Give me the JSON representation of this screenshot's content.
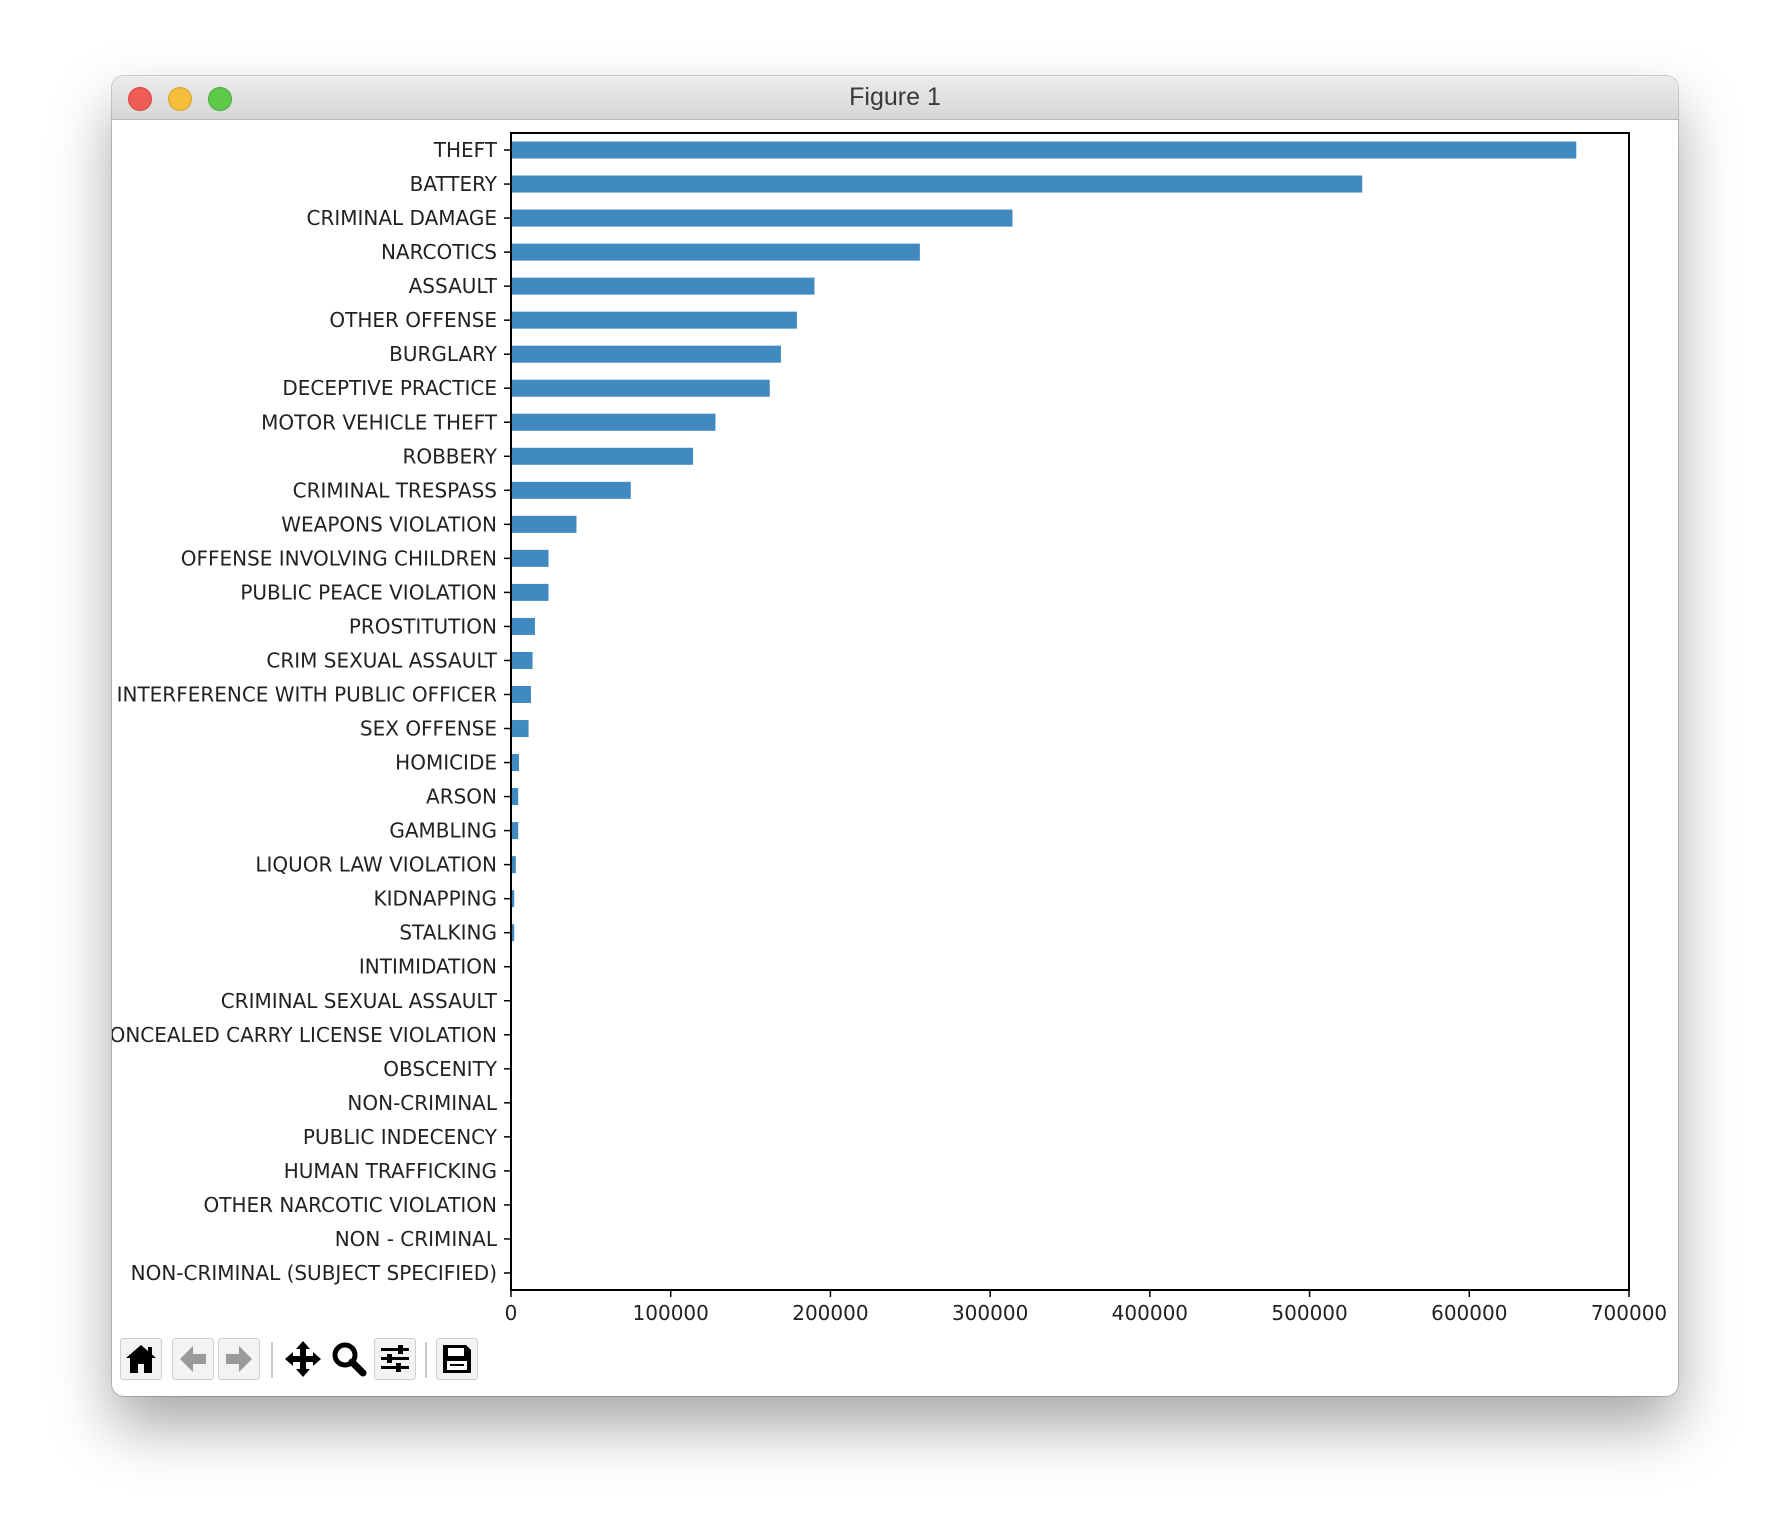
{
  "window": {
    "title": "Figure 1"
  },
  "toolbar": {
    "buttons": [
      "home-icon",
      "back-arrow-icon",
      "forward-arrow-icon",
      "pan-icon",
      "zoom-icon",
      "configure-subplots-icon",
      "save-icon"
    ]
  },
  "colors": {
    "bar": "#4189c1",
    "axes": "#000000"
  },
  "chart_data": {
    "type": "bar",
    "orientation": "horizontal",
    "title": "",
    "xlabel": "",
    "ylabel": "",
    "xlim": [
      0,
      700000
    ],
    "xticks": [
      0,
      100000,
      200000,
      300000,
      400000,
      500000,
      600000,
      700000
    ],
    "xtick_labels": [
      "0",
      "100000",
      "200000",
      "300000",
      "400000",
      "500000",
      "600000",
      "700000"
    ],
    "grid": false,
    "categories": [
      "THEFT",
      "BATTERY",
      "CRIMINAL DAMAGE",
      "NARCOTICS",
      "ASSAULT",
      "OTHER OFFENSE",
      "BURGLARY",
      "DECEPTIVE PRACTICE",
      "MOTOR VEHICLE THEFT",
      "ROBBERY",
      "CRIMINAL TRESPASS",
      "WEAPONS VIOLATION",
      "OFFENSE INVOLVING CHILDREN",
      "PUBLIC PEACE VIOLATION",
      "PROSTITUTION",
      "CRIM SEXUAL ASSAULT",
      "INTERFERENCE WITH PUBLIC OFFICER",
      "SEX OFFENSE",
      "HOMICIDE",
      "ARSON",
      "GAMBLING",
      "LIQUOR LAW VIOLATION",
      "KIDNAPPING",
      "STALKING",
      "INTIMIDATION",
      "CRIMINAL SEXUAL ASSAULT",
      "CONCEALED CARRY LICENSE VIOLATION",
      "OBSCENITY",
      "NON-CRIMINAL",
      "PUBLIC INDECENCY",
      "HUMAN TRAFFICKING",
      "OTHER NARCOTIC VIOLATION",
      "NON - CRIMINAL",
      "NON-CRIMINAL (SUBJECT SPECIFIED)"
    ],
    "values": [
      667000,
      533000,
      314000,
      256000,
      190000,
      179000,
      169000,
      162000,
      128000,
      114000,
      75000,
      41000,
      23500,
      23500,
      15000,
      13500,
      12500,
      11000,
      5000,
      4500,
      4500,
      3000,
      2000,
      2000,
      500,
      300,
      200,
      100,
      80,
      50,
      30,
      20,
      10,
      5
    ]
  }
}
